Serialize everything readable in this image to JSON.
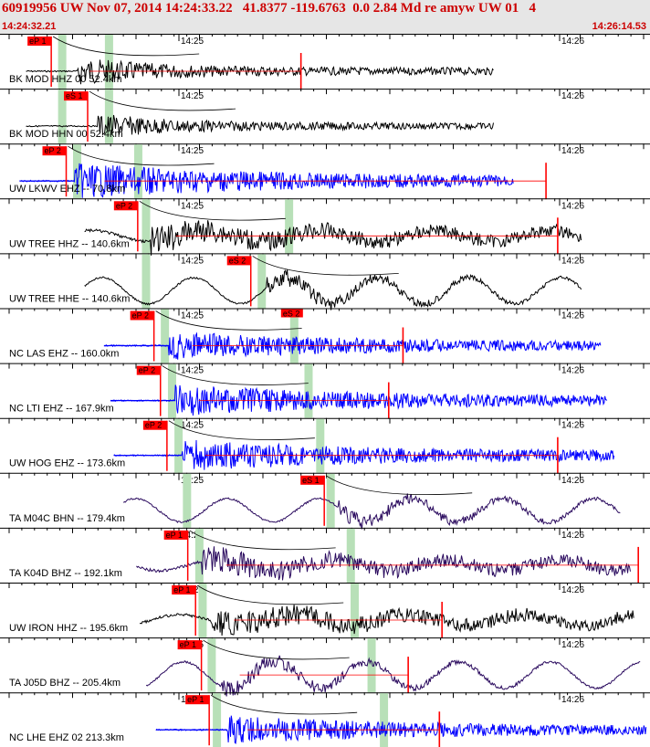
{
  "header": {
    "title": "60919956 UW Nov 07, 2014 14:24:33.22   41.8377 -119.6763  0.0 2.84 Md re amyw UW 01   4",
    "start_time": "14:24:32.21",
    "end_time": "14:26:14.53"
  },
  "time_labels": [
    "14:25",
    "14:26"
  ],
  "colors": {
    "header_text": "#cc0000",
    "header_bg": "#e6e6e6",
    "pick": "#ff0000",
    "window": "#b8e0b8",
    "black_trace": "#000000",
    "blue_trace": "#0000ff",
    "purple_trace": "#2a0a5e"
  },
  "traces": [
    {
      "label": "BK MOD HHZ 00 52.4km",
      "color": "black",
      "style": "local",
      "start": 0.04,
      "end": 0.76,
      "onset": 0.12,
      "amp": 16,
      "pick": "eP 1",
      "pick_pos": 0.062,
      "windows": [
        0.095,
        0.167
      ],
      "marker": 0.463,
      "ann": ""
    },
    {
      "label": "BK MOD HHN 00 52.4km",
      "color": "black",
      "style": "local",
      "start": 0.04,
      "end": 0.76,
      "onset": 0.15,
      "amp": 14,
      "pick": "eS 1",
      "pick_pos": 0.118,
      "windows": [
        0.095,
        0.167
      ],
      "marker": -1,
      "ann": ""
    },
    {
      "label": "UW LKWV EHZ -- 70.8km",
      "color": "blue",
      "style": "blue",
      "start": 0.03,
      "end": 0.79,
      "onset": 0.115,
      "amp": 20,
      "pick": "eP 2",
      "pick_pos": 0.085,
      "windows": [
        0.118,
        0.212
      ],
      "marker": 0.84,
      "ann": ""
    },
    {
      "label": "UW TREE HHZ -- 140.6km",
      "color": "black",
      "style": "mixed",
      "start": 0.13,
      "end": 0.895,
      "onset": 0.232,
      "amp": 16,
      "pick": "eP 2",
      "pick_pos": 0.195,
      "windows": [
        0.224,
        0.444
      ],
      "marker": 0.858,
      "ann": ""
    },
    {
      "label": "UW TREE HHE -- 140.6km",
      "color": "black",
      "style": "wavy",
      "start": 0.13,
      "end": 0.895,
      "onset": 0.41,
      "amp": 18,
      "pick": "eS 2",
      "pick_pos": 0.369,
      "windows": [
        0.224,
        0.402
      ],
      "marker": -1,
      "ann": ""
    },
    {
      "label": "NC LAS EHZ -- 160.0km",
      "color": "blue",
      "style": "blue",
      "start": 0.16,
      "end": 0.925,
      "onset": 0.26,
      "amp": 16,
      "pick": "eP 2",
      "pick_pos": 0.22,
      "windows": [
        0.253,
        0.452
      ],
      "marker": 0.62,
      "ann": "eS 2"
    },
    {
      "label": "NC LTI EHZ -- 167.9km",
      "color": "blue",
      "style": "blue",
      "start": 0.17,
      "end": 0.935,
      "onset": 0.27,
      "amp": 18,
      "pick": "eP 2",
      "pick_pos": 0.23,
      "windows": [
        0.264,
        0.474
      ],
      "marker": 0.598,
      "ann": ""
    },
    {
      "label": "UW HOG EHZ -- 173.6km",
      "color": "blue",
      "style": "blue",
      "start": 0.175,
      "end": 0.945,
      "onset": 0.28,
      "amp": 18,
      "pick": "eP 2",
      "pick_pos": 0.24,
      "windows": [
        0.274,
        0.492
      ],
      "marker": 0.858,
      "ann": ""
    },
    {
      "label": "TA M04C BHN -- 179.4km",
      "color": "purple",
      "style": "wavy",
      "start": 0.19,
      "end": 0.955,
      "onset": 0.52,
      "amp": 16,
      "pick": "eS 1",
      "pick_pos": 0.482,
      "windows": [
        0.287,
        0.508
      ],
      "marker": -1,
      "ann": ""
    },
    {
      "label": "TA K04D BHZ -- 192.1km",
      "color": "purple",
      "style": "mixed",
      "start": 0.21,
      "end": 0.97,
      "onset": 0.31,
      "amp": 16,
      "pick": "eP 1",
      "pick_pos": 0.272,
      "windows": [
        0.306,
        0.539
      ],
      "marker": 0.982,
      "ann": ""
    },
    {
      "label": "UW IRON HHZ -- 195.6km",
      "color": "black",
      "style": "mixed",
      "start": 0.215,
      "end": 0.975,
      "onset": 0.325,
      "amp": 16,
      "pick": "eP 1",
      "pick_pos": 0.284,
      "windows": [
        0.311,
        0.545
      ],
      "marker": 0.68,
      "ann": ""
    },
    {
      "label": "TA J05D BHZ -- 205.4km",
      "color": "purple",
      "style": "wavy",
      "start": 0.225,
      "end": 0.985,
      "onset": 0.34,
      "amp": 18,
      "pick": "eP 1",
      "pick_pos": 0.293,
      "windows": [
        0.325,
        0.571
      ],
      "marker": 0.628,
      "ann": ""
    },
    {
      "label": "NC LHE EHZ 02 213.3km",
      "color": "blue",
      "style": "blue",
      "start": 0.24,
      "end": 0.995,
      "onset": 0.35,
      "amp": 16,
      "pick": "eP 1",
      "pick_pos": 0.305,
      "windows": [
        0.333,
        0.59
      ],
      "marker": 0.676,
      "ann": ""
    }
  ]
}
